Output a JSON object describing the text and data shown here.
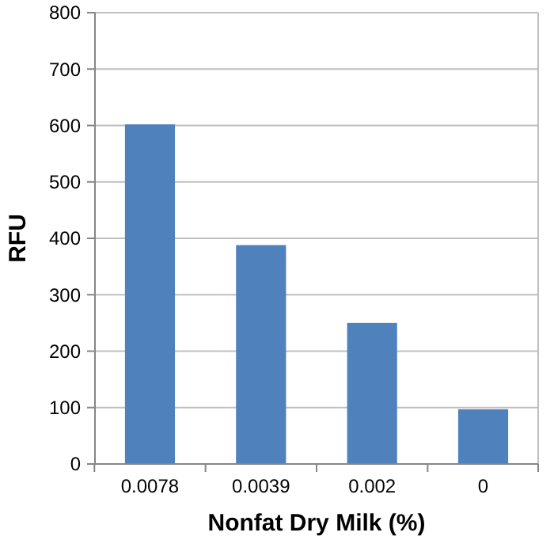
{
  "chart_data": {
    "type": "bar",
    "xlabel": "Nonfat Dry Milk (%)",
    "ylabel": "RFU",
    "categories": [
      "0.0078",
      "0.0039",
      "0.002",
      "0"
    ],
    "values": [
      602,
      388,
      250,
      97
    ],
    "color": "#4f81bd",
    "ylim": [
      0,
      800
    ],
    "yticks": [
      0,
      100,
      200,
      300,
      400,
      500,
      600,
      700,
      800
    ],
    "grid": "y"
  }
}
